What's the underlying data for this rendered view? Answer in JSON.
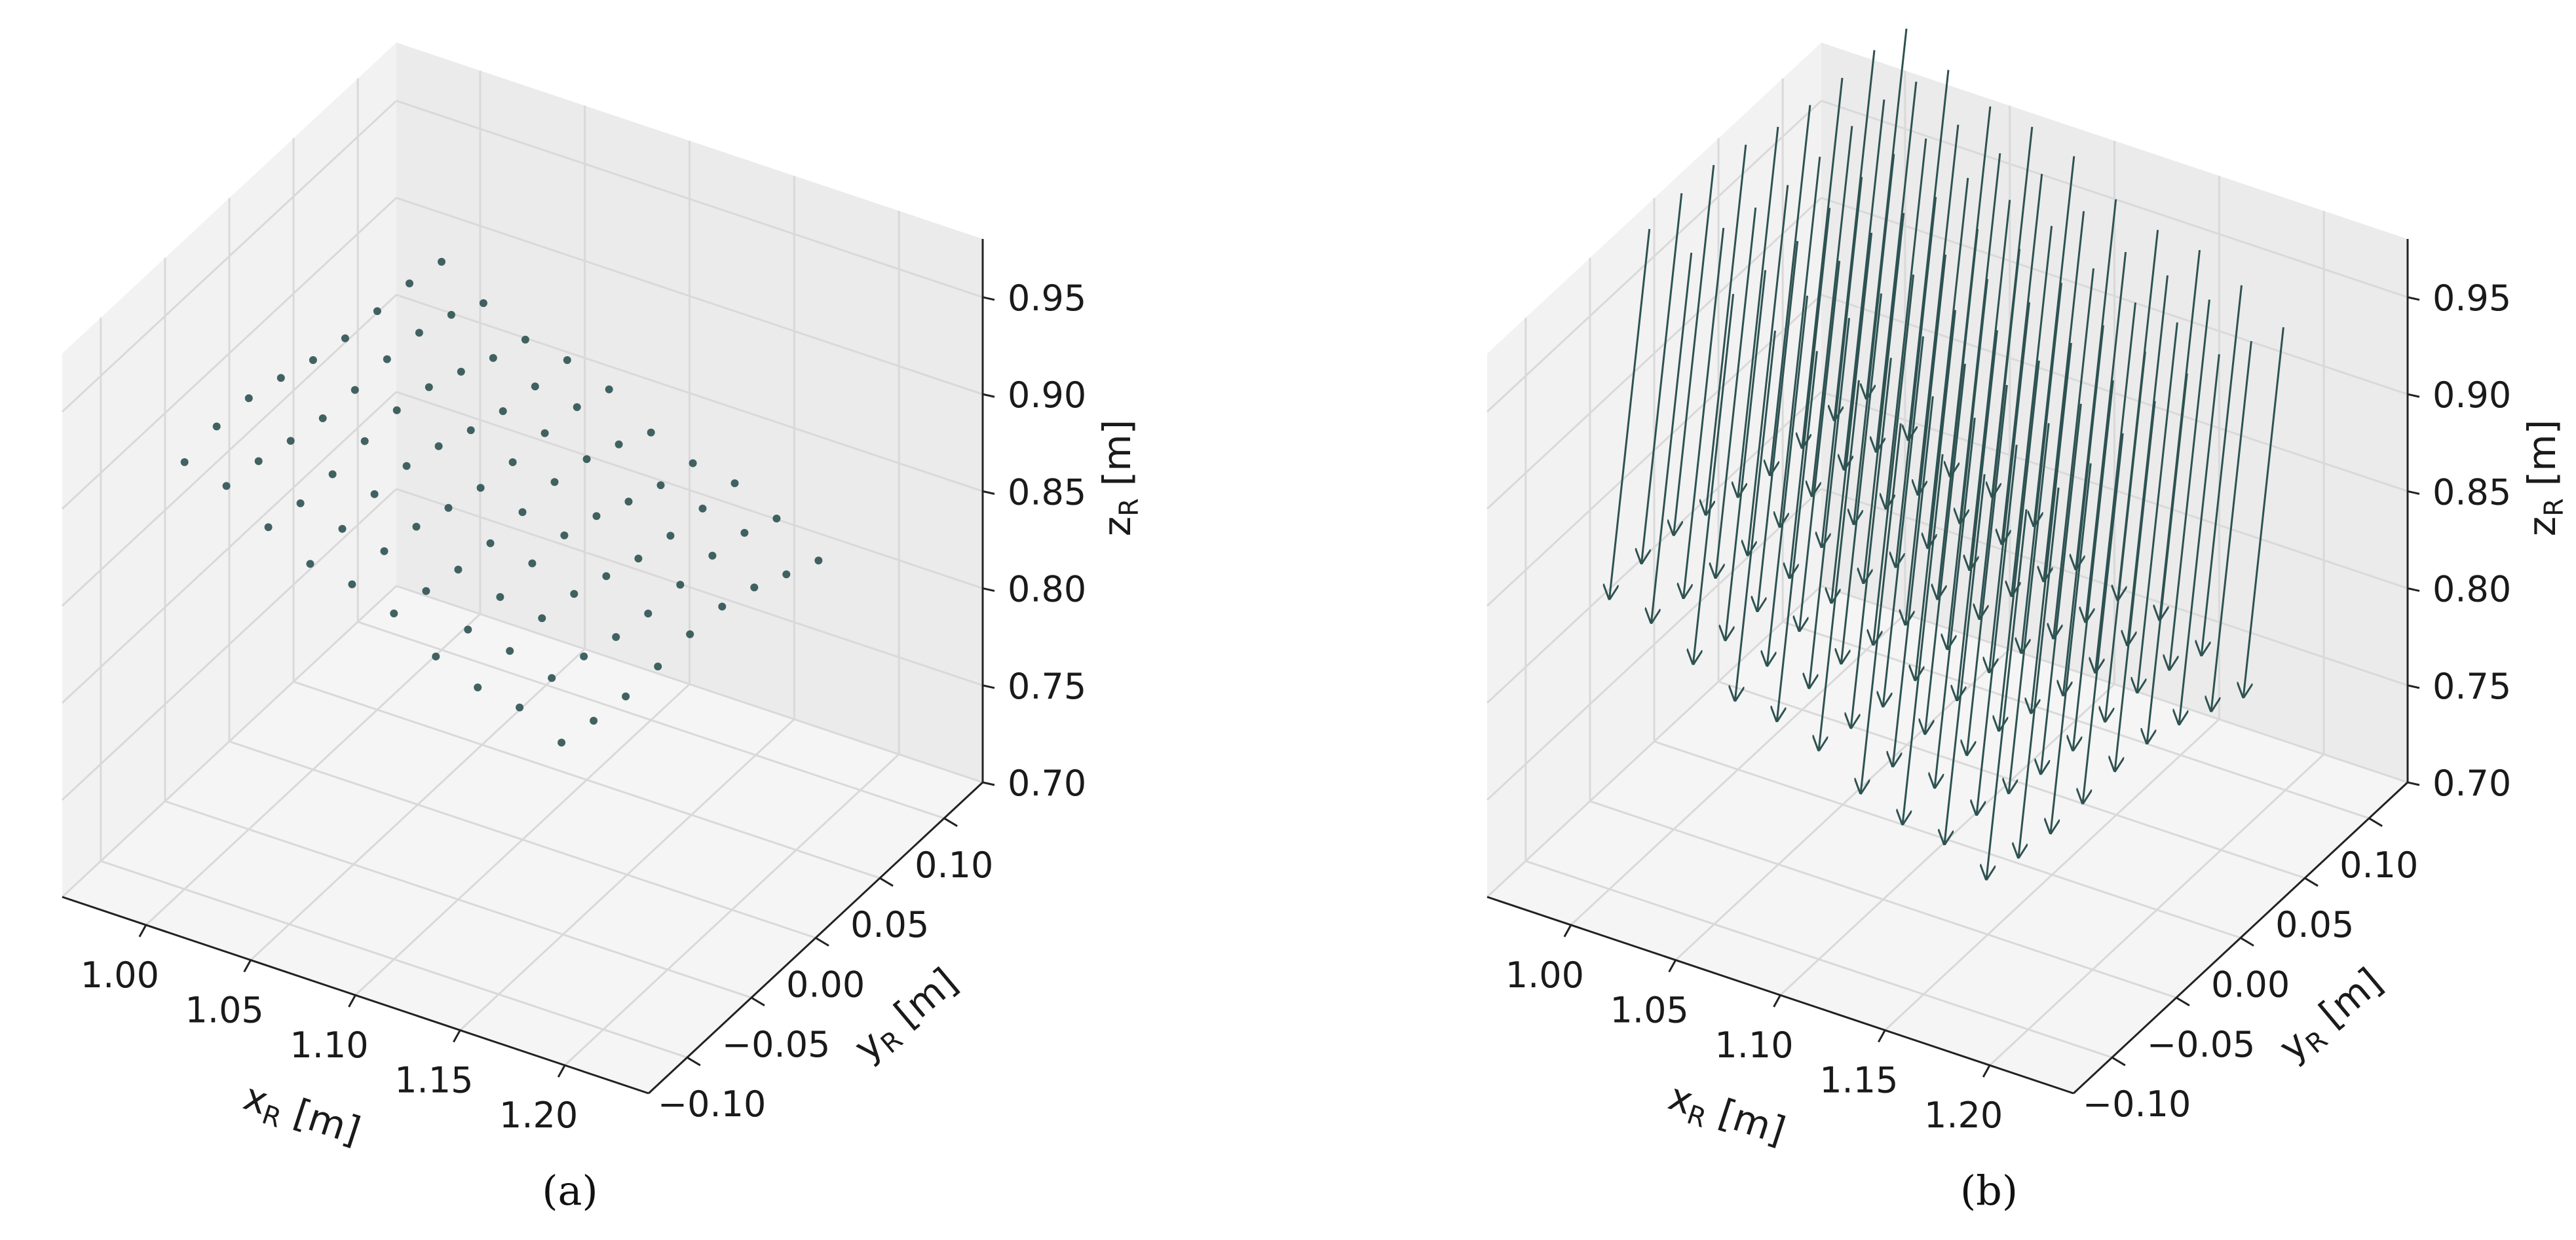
{
  "chart_data": [
    {
      "type": "scatter3d",
      "panel_label": "(a)",
      "panel_label_letter": "a",
      "xlabel": {
        "main": "x",
        "sub": "R",
        "unit": " [m]"
      },
      "ylabel": {
        "main": "y",
        "sub": "R",
        "unit": " [m]"
      },
      "zlabel": {
        "main": "z",
        "sub": "R",
        "unit": " [m]"
      },
      "xlim": [
        0.96,
        1.24
      ],
      "ylim": [
        -0.13,
        0.13
      ],
      "zlim": [
        0.7,
        0.98
      ],
      "x_ticks": [
        "1.00",
        "1.05",
        "1.10",
        "1.15",
        "1.20"
      ],
      "y_ticks": [
        "−0.10",
        "−0.05",
        "0.00",
        "0.05",
        "0.10"
      ],
      "z_ticks": [
        "0.70",
        "0.75",
        "0.80",
        "0.85",
        "0.90",
        "0.95"
      ],
      "grid": true,
      "marker_color": "#2e5252",
      "points": {
        "x_start": 1.0,
        "x_step": 0.02,
        "x_count": 10,
        "y_start": -0.1,
        "y_step": 0.025,
        "y_count": 9,
        "z_formula": "0.92 - 0.45*(x-1.0) - 0.6*(y+0.1)^2 + ripple"
      }
    },
    {
      "type": "quiver3d",
      "panel_label": "(b)",
      "panel_label_letter": "b",
      "xlabel": {
        "main": "x",
        "sub": "R",
        "unit": " [m]"
      },
      "ylabel": {
        "main": "y",
        "sub": "R",
        "unit": " [m]"
      },
      "zlabel": {
        "main": "z",
        "sub": "R",
        "unit": " [m]"
      },
      "xlim": [
        0.96,
        1.24
      ],
      "ylim": [
        -0.13,
        0.13
      ],
      "zlim": [
        0.7,
        0.98
      ],
      "x_ticks": [
        "1.00",
        "1.05",
        "1.10",
        "1.15",
        "1.20"
      ],
      "y_ticks": [
        "−0.10",
        "−0.05",
        "0.00",
        "0.05",
        "0.10"
      ],
      "z_ticks": [
        "0.70",
        "0.75",
        "0.80",
        "0.85",
        "0.90",
        "0.95"
      ],
      "grid": true,
      "arrow_color": "#2e5252",
      "arrow_length": 0.12,
      "arrows": "surface normals pointing downward at the same grid of points as panel (a)"
    }
  ]
}
